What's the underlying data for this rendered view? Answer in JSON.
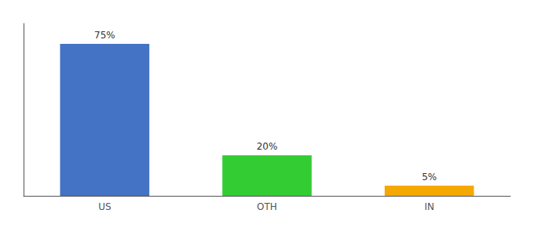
{
  "chart_data": {
    "type": "bar",
    "categories": [
      "US",
      "OTH",
      "IN"
    ],
    "values": [
      75,
      20,
      5
    ],
    "value_labels": [
      "75%",
      "20%",
      "5%"
    ],
    "colors": [
      "#4472c4",
      "#33cc33",
      "#f5a800"
    ],
    "ylim": [
      0,
      85
    ],
    "grid": false,
    "data_labels": true,
    "tick_labels": "x"
  }
}
